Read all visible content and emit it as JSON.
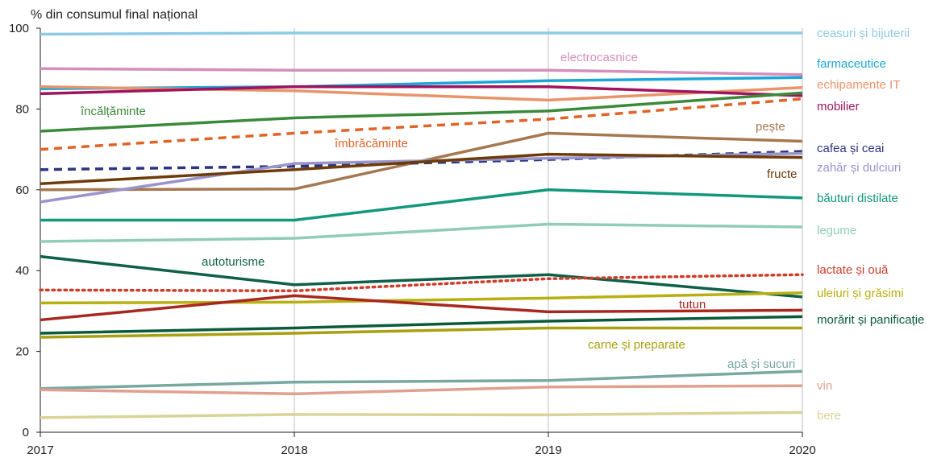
{
  "chart_data": {
    "type": "line",
    "title": "",
    "y_unit_label": "% din consumul final național",
    "xlabel": "",
    "ylabel": "",
    "x": [
      "2017",
      "2018",
      "2019",
      "2020"
    ],
    "ylim": [
      0,
      100
    ],
    "yticks": [
      0,
      20,
      40,
      60,
      80,
      100
    ],
    "grid": "vertical",
    "legend": "none (direct labels)",
    "series": [
      {
        "name": "ceasuri și bijuterii",
        "color": "#8ecae6",
        "dash": "solid",
        "values": [
          98.5,
          98.8,
          98.8,
          98.8
        ]
      },
      {
        "name": "electrocasnice",
        "color": "#d48fba",
        "dash": "solid",
        "values": [
          90.0,
          89.6,
          89.6,
          88.5
        ]
      },
      {
        "name": "farmaceutice",
        "color": "#1aa6d8",
        "dash": "solid",
        "values": [
          85.0,
          85.5,
          87.0,
          87.8
        ]
      },
      {
        "name": "echipamente IT",
        "color": "#e8946a",
        "dash": "solid",
        "values": [
          85.5,
          84.5,
          82.2,
          85.3
        ]
      },
      {
        "name": "mobilier",
        "color": "#a0145f",
        "dash": "solid",
        "values": [
          83.8,
          85.5,
          85.5,
          83.3
        ]
      },
      {
        "name": "încălțăminte",
        "color": "#3a8a3a",
        "dash": "solid",
        "values": [
          74.5,
          77.8,
          79.5,
          84.0
        ]
      },
      {
        "name": "îmbrăcăminte",
        "color": "#e06428",
        "dash": "dash",
        "values": [
          70.0,
          74.0,
          77.5,
          82.5
        ]
      },
      {
        "name": "pește",
        "color": "#a57850",
        "dash": "solid",
        "values": [
          60.0,
          60.2,
          74.0,
          72.0
        ]
      },
      {
        "name": "cafea și ceai",
        "color": "#2a3580",
        "dash": "dash",
        "values": [
          65.0,
          65.8,
          67.5,
          69.5
        ]
      },
      {
        "name": "zahăr și dulciuri",
        "color": "#9a94cc",
        "dash": "solid",
        "values": [
          57.0,
          66.5,
          67.8,
          69.0
        ]
      },
      {
        "name": "fructe",
        "color": "#6e3c08",
        "dash": "solid",
        "values": [
          61.5,
          65.0,
          68.8,
          68.0
        ]
      },
      {
        "name": "băuturi distilate",
        "color": "#12987a",
        "dash": "solid",
        "values": [
          52.5,
          52.5,
          60.0,
          58.0
        ]
      },
      {
        "name": "legume",
        "color": "#90ccb8",
        "dash": "solid",
        "values": [
          47.2,
          48.0,
          51.5,
          50.8
        ]
      },
      {
        "name": "autoturisme",
        "color": "#0e6048",
        "dash": "solid",
        "values": [
          43.5,
          36.5,
          39.0,
          33.5
        ]
      },
      {
        "name": "lactate și ouă",
        "color": "#d03c2a",
        "dash": "dot",
        "values": [
          35.2,
          35.0,
          38.0,
          39.0
        ]
      },
      {
        "name": "uleiuri și grăsimi",
        "color": "#b8b010",
        "dash": "solid",
        "values": [
          32.0,
          32.2,
          33.2,
          34.5
        ]
      },
      {
        "name": "tutun",
        "color": "#a82820",
        "dash": "solid",
        "values": [
          27.8,
          33.8,
          29.8,
          30.2
        ]
      },
      {
        "name": "morărit și panificație",
        "color": "#0a5a3c",
        "dash": "solid",
        "values": [
          24.5,
          25.8,
          27.5,
          28.6
        ]
      },
      {
        "name": "carne și preparate",
        "color": "#a8a010",
        "dash": "solid",
        "values": [
          23.5,
          24.5,
          25.8,
          25.8
        ]
      },
      {
        "name": "apă și sucuri",
        "color": "#78a8a0",
        "dash": "solid",
        "values": [
          10.8,
          12.4,
          12.8,
          15.1
        ]
      },
      {
        "name": "vin",
        "color": "#e0a090",
        "dash": "solid",
        "values": [
          10.5,
          9.5,
          11.2,
          11.5
        ]
      },
      {
        "name": "bere",
        "color": "#d8d498",
        "dash": "solid",
        "values": [
          3.6,
          4.4,
          4.3,
          4.9
        ]
      }
    ]
  }
}
